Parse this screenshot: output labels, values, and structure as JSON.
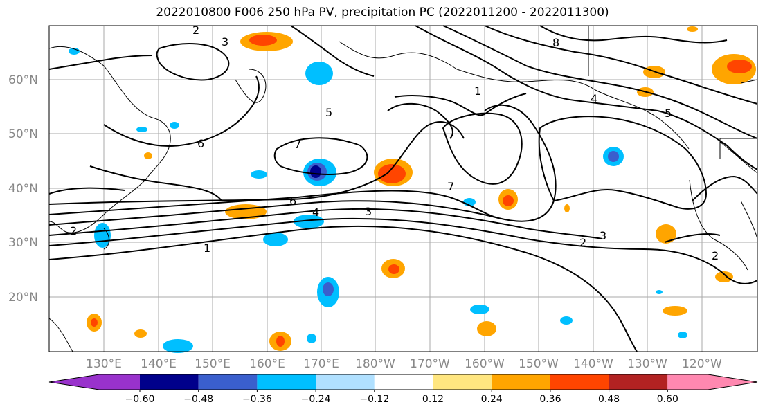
{
  "title": "2022010800 F006 250 hPa PV, precipitation PC (2022011200 - 2022011300)",
  "lat_labels": [
    "60°N",
    "50°N",
    "40°N",
    "30°N",
    "20°N"
  ],
  "lon_labels": [
    "130°E",
    "140°E",
    "150°E",
    "160°E",
    "170°E",
    "180°W",
    "170°W",
    "160°W",
    "150°W",
    "140°W",
    "130°W",
    "120°W"
  ],
  "colorbar": {
    "ticks": [
      "−0.60",
      "−0.48",
      "−0.36",
      "−0.24",
      "−0.12",
      "0.12",
      "0.24",
      "0.36",
      "0.48",
      "0.60"
    ],
    "colors": [
      "#9932cc",
      "#00008b",
      "#3a5fcd",
      "#00bfff",
      "#b0e0ff",
      "#ffffff",
      "#ffe680",
      "#ffa500",
      "#ff4500",
      "#b22222",
      "#ff88b0"
    ]
  },
  "contour_labels": [
    "1",
    "2",
    "3",
    "4",
    "5",
    "6",
    "7",
    "8"
  ]
}
